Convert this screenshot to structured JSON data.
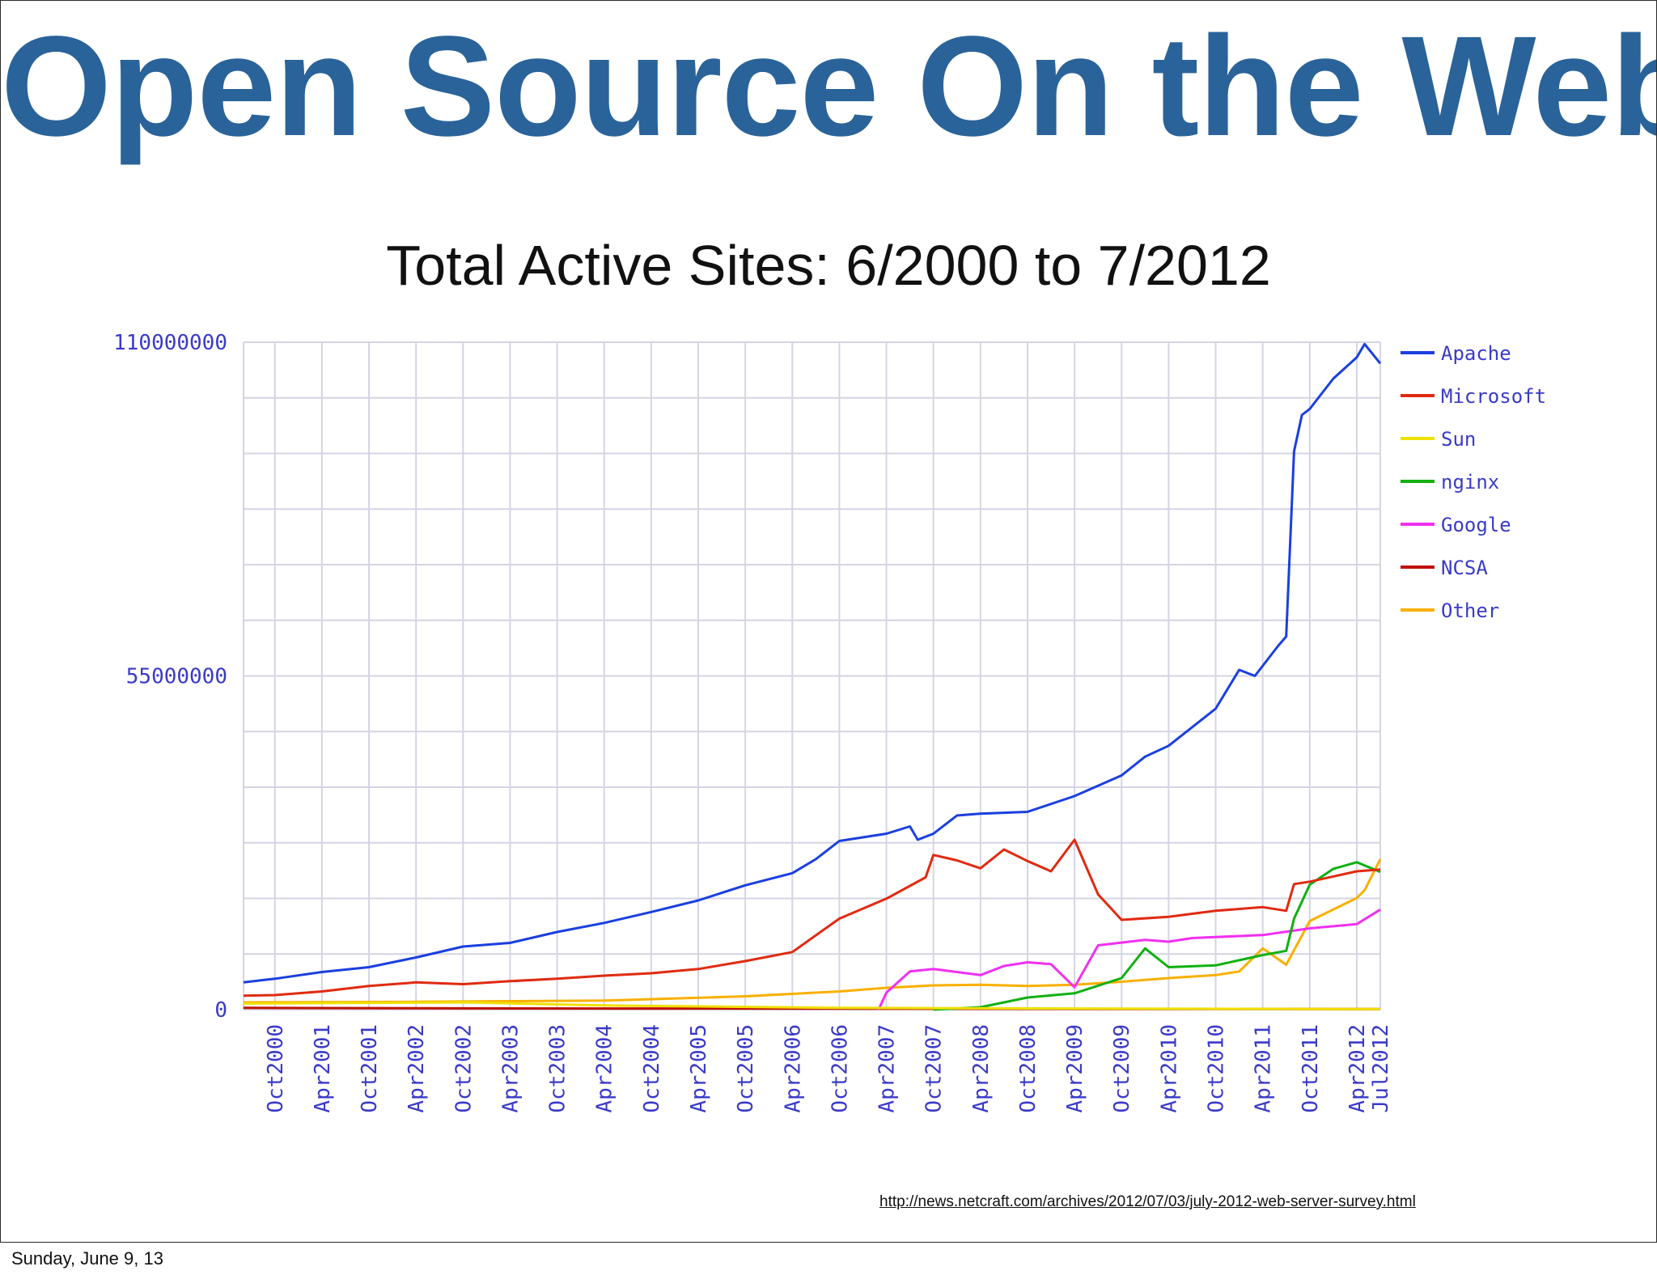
{
  "slide": {
    "title": "Open Source On the Web",
    "source_url": "http://news.netcraft.com/archives/2012/07/03/july-2012-web-server-survey.html",
    "footer_date": "Sunday, June 9, 13"
  },
  "chart_data": {
    "type": "line",
    "title": "Total Active Sites: 6/2000 to 7/2012",
    "xlabel": "",
    "ylabel": "",
    "x_range": [
      "2000-06",
      "2012-07"
    ],
    "ylim": [
      0,
      110000000
    ],
    "yticks": [
      0,
      55000000,
      110000000
    ],
    "ytick_labels": [
      "0",
      "55000000",
      "110000000"
    ],
    "xtick_labels": [
      "Oct2000",
      "Apr2001",
      "Oct2001",
      "Apr2002",
      "Oct2002",
      "Apr2003",
      "Oct2003",
      "Apr2004",
      "Oct2004",
      "Apr2005",
      "Oct2005",
      "Apr2006",
      "Oct2006",
      "Apr2007",
      "Oct2007",
      "Apr2008",
      "Oct2008",
      "Apr2009",
      "Oct2009",
      "Apr2010",
      "Oct2010",
      "Apr2011",
      "Oct2011",
      "Apr2012",
      "Jul2012"
    ],
    "grid": true,
    "legend_position": "right",
    "series": [
      {
        "name": "Apache",
        "color": "#1a3fe0",
        "points": [
          [
            "2000-06",
            4500000
          ],
          [
            "2000-10",
            5100000
          ],
          [
            "2001-04",
            6200000
          ],
          [
            "2001-10",
            7000000
          ],
          [
            "2002-04",
            8600000
          ],
          [
            "2002-10",
            10400000
          ],
          [
            "2003-04",
            11000000
          ],
          [
            "2003-10",
            12800000
          ],
          [
            "2004-04",
            14300000
          ],
          [
            "2004-10",
            16100000
          ],
          [
            "2005-04",
            18000000
          ],
          [
            "2005-10",
            20500000
          ],
          [
            "2006-04",
            22500000
          ],
          [
            "2006-07",
            24800000
          ],
          [
            "2006-10",
            27800000
          ],
          [
            "2007-04",
            29000000
          ],
          [
            "2007-07",
            30200000
          ],
          [
            "2007-08",
            28000000
          ],
          [
            "2007-10",
            29000000
          ],
          [
            "2008-01",
            32000000
          ],
          [
            "2008-04",
            32300000
          ],
          [
            "2008-10",
            32600000
          ],
          [
            "2009-04",
            35200000
          ],
          [
            "2009-10",
            38600000
          ],
          [
            "2010-01",
            41700000
          ],
          [
            "2010-04",
            43500000
          ],
          [
            "2010-10",
            49600000
          ],
          [
            "2011-01",
            56000000
          ],
          [
            "2011-03",
            55000000
          ],
          [
            "2011-06",
            60000000
          ],
          [
            "2011-07",
            61500000
          ],
          [
            "2011-08",
            92000000
          ],
          [
            "2011-09",
            98000000
          ],
          [
            "2011-10",
            99000000
          ],
          [
            "2012-01",
            104000000
          ],
          [
            "2012-04",
            107500000
          ],
          [
            "2012-05",
            109700000
          ],
          [
            "2012-07",
            106500000
          ]
        ]
      },
      {
        "name": "Microsoft",
        "color": "#e02a10",
        "points": [
          [
            "2000-06",
            2300000
          ],
          [
            "2000-10",
            2400000
          ],
          [
            "2001-04",
            3000000
          ],
          [
            "2001-10",
            3900000
          ],
          [
            "2002-04",
            4500000
          ],
          [
            "2002-10",
            4200000
          ],
          [
            "2003-04",
            4700000
          ],
          [
            "2003-10",
            5100000
          ],
          [
            "2004-04",
            5600000
          ],
          [
            "2004-10",
            6000000
          ],
          [
            "2005-04",
            6700000
          ],
          [
            "2005-10",
            8000000
          ],
          [
            "2006-04",
            9500000
          ],
          [
            "2006-10",
            15000000
          ],
          [
            "2007-04",
            18300000
          ],
          [
            "2007-09",
            21800000
          ],
          [
            "2007-10",
            25500000
          ],
          [
            "2008-01",
            24600000
          ],
          [
            "2008-04",
            23300000
          ],
          [
            "2008-07",
            26400000
          ],
          [
            "2008-10",
            24500000
          ],
          [
            "2009-01",
            22800000
          ],
          [
            "2009-04",
            28000000
          ],
          [
            "2009-07",
            19000000
          ],
          [
            "2009-10",
            14800000
          ],
          [
            "2010-04",
            15300000
          ],
          [
            "2010-10",
            16300000
          ],
          [
            "2011-04",
            16900000
          ],
          [
            "2011-07",
            16300000
          ],
          [
            "2011-08",
            20700000
          ],
          [
            "2011-10",
            21100000
          ],
          [
            "2012-04",
            22800000
          ],
          [
            "2012-07",
            23100000
          ]
        ]
      },
      {
        "name": "Sun",
        "color": "#f0e000",
        "points": [
          [
            "2000-06",
            1000000
          ],
          [
            "2002-10",
            1200000
          ],
          [
            "2004-04",
            700000
          ],
          [
            "2006-10",
            300000
          ],
          [
            "2008-10",
            200000
          ],
          [
            "2012-07",
            100000
          ]
        ]
      },
      {
        "name": "nginx",
        "color": "#10b010",
        "points": [
          [
            "2007-10",
            0
          ],
          [
            "2008-04",
            400000
          ],
          [
            "2008-10",
            2000000
          ],
          [
            "2009-04",
            2700000
          ],
          [
            "2009-10",
            5200000
          ],
          [
            "2010-01",
            10100000
          ],
          [
            "2010-04",
            7000000
          ],
          [
            "2010-10",
            7300000
          ],
          [
            "2011-04",
            9000000
          ],
          [
            "2011-07",
            9700000
          ],
          [
            "2011-08",
            15000000
          ],
          [
            "2011-10",
            20600000
          ],
          [
            "2012-01",
            23200000
          ],
          [
            "2012-04",
            24300000
          ],
          [
            "2012-07",
            22700000
          ]
        ]
      },
      {
        "name": "Google",
        "color": "#f030f0",
        "points": [
          [
            "2007-03",
            0
          ],
          [
            "2007-04",
            2800000
          ],
          [
            "2007-07",
            6300000
          ],
          [
            "2007-10",
            6700000
          ],
          [
            "2008-04",
            5700000
          ],
          [
            "2008-07",
            7200000
          ],
          [
            "2008-10",
            7800000
          ],
          [
            "2009-01",
            7500000
          ],
          [
            "2009-04",
            3700000
          ],
          [
            "2009-07",
            10600000
          ],
          [
            "2010-01",
            11500000
          ],
          [
            "2010-04",
            11200000
          ],
          [
            "2010-07",
            11800000
          ],
          [
            "2011-04",
            12300000
          ],
          [
            "2011-10",
            13400000
          ],
          [
            "2012-04",
            14100000
          ],
          [
            "2012-07",
            16500000
          ]
        ]
      },
      {
        "name": "NCSA",
        "color": "#c01000",
        "points": [
          [
            "2000-06",
            300000
          ],
          [
            "2003-06",
            200000
          ],
          [
            "2012-07",
            100000
          ]
        ]
      },
      {
        "name": "Other",
        "color": "#f8b000",
        "points": [
          [
            "2000-06",
            1200000
          ],
          [
            "2002-04",
            1300000
          ],
          [
            "2004-04",
            1500000
          ],
          [
            "2005-10",
            2200000
          ],
          [
            "2006-04",
            2600000
          ],
          [
            "2006-10",
            3000000
          ],
          [
            "2007-04",
            3600000
          ],
          [
            "2007-10",
            4000000
          ],
          [
            "2008-04",
            4100000
          ],
          [
            "2008-10",
            3900000
          ],
          [
            "2009-04",
            4100000
          ],
          [
            "2009-10",
            4600000
          ],
          [
            "2010-04",
            5200000
          ],
          [
            "2010-10",
            5700000
          ],
          [
            "2011-01",
            6300000
          ],
          [
            "2011-04",
            10100000
          ],
          [
            "2011-07",
            7400000
          ],
          [
            "2011-10",
            14600000
          ],
          [
            "2012-04",
            18400000
          ],
          [
            "2012-05",
            19700000
          ],
          [
            "2012-07",
            24800000
          ]
        ]
      }
    ]
  }
}
